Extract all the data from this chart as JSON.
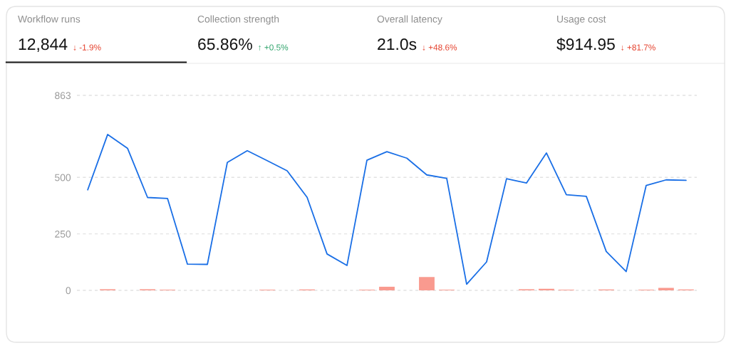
{
  "chart_data": [
    {
      "type": "other",
      "title": "Workflow runs",
      "subtitle": "12,844",
      "annotations": [
        "↓ -1.9%"
      ],
      "color": "#e5432f"
    },
    {
      "type": "other",
      "title": "Collection strength",
      "subtitle": "65.86%",
      "annotations": [
        "↑ +0.5%"
      ],
      "color": "#30a46c"
    },
    {
      "type": "other",
      "title": "Overall latency",
      "subtitle": "21.0s",
      "annotations": [
        "↓ +48.6%"
      ],
      "color": "#e5432f"
    },
    {
      "type": "other",
      "title": "Usage cost",
      "subtitle": "$914.95",
      "annotations": [
        "↓ +81.7%"
      ],
      "color": "#e5432f"
    },
    {
      "type": "line",
      "categories": [
        null,
        null,
        null,
        null,
        null,
        null,
        null,
        null,
        null,
        null,
        null,
        null,
        null,
        null,
        null,
        null,
        null,
        null,
        null,
        null,
        null,
        null,
        null,
        null,
        null,
        null,
        null,
        null,
        null,
        null,
        null
      ],
      "series": [
        {
          "type": "bar",
          "color": "#f99a8f",
          "values": [
            null,
            5,
            null,
            5,
            3,
            null,
            null,
            null,
            null,
            3,
            null,
            4,
            null,
            null,
            3,
            16,
            null,
            59,
            3,
            null,
            null,
            null,
            5,
            7,
            3,
            null,
            4,
            null,
            3,
            11,
            4
          ]
        },
        {
          "type": "line",
          "color": "#1a6fe6",
          "values": [
            445,
            690,
            628,
            411,
            407,
            116,
            115,
            566,
            618,
            574,
            529,
            412,
            161,
            110,
            576,
            614,
            585,
            511,
            496,
            27,
            126,
            494,
            475,
            608,
            423,
            416,
            172,
            83,
            464,
            489,
            487
          ]
        }
      ],
      "ylim": [
        0,
        863
      ],
      "yticks": [
        0,
        250,
        500,
        863
      ],
      "grid": "y",
      "tick_labels": "y"
    }
  ]
}
